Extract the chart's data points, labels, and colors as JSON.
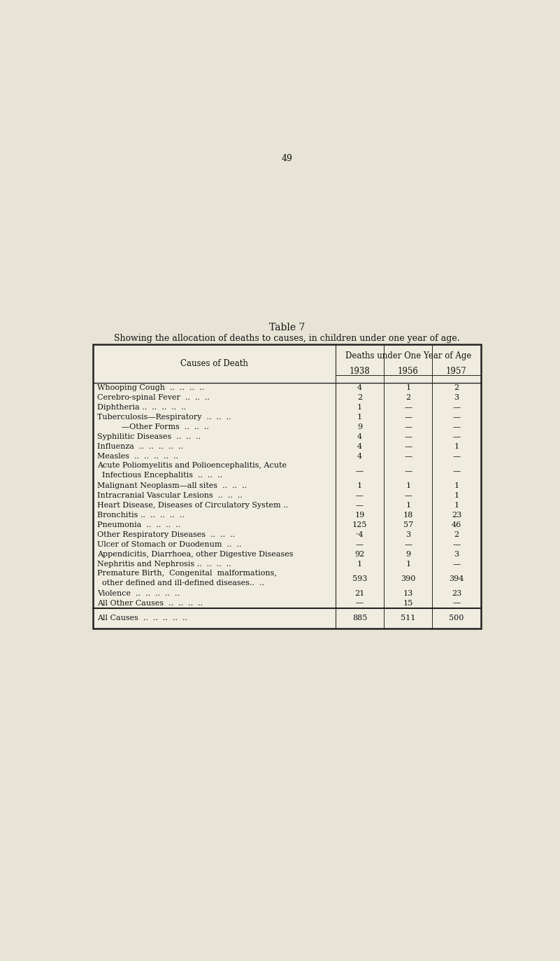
{
  "page_number": "49",
  "title": "Table 7",
  "subtitle": "Showing the allocation of deaths to causes, in children under one year of age.",
  "col_header_main": "Deaths under One Year of Age",
  "causes_of_death_label": "Causes of Death",
  "year_headers": [
    "1938",
    "1956",
    "1957"
  ],
  "rows": [
    [
      "Whooping Cough  ..  ..  ..  ..",
      "4",
      "1",
      "2"
    ],
    [
      "Cerebro-spinal Fever  ..  ..  ..",
      "2",
      "2",
      "3"
    ],
    [
      "Diphtheria ..  ..  ..  ..  ..",
      "1",
      "—",
      "—"
    ],
    [
      "Tuberculosis—Respiratory  ..  ..  ..",
      "1",
      "—",
      "—"
    ],
    [
      "          —Other Forms  ..  ..  ..",
      "9",
      "—",
      "—"
    ],
    [
      "Syphilitic Diseases  ..  ..  ..",
      "4",
      "—",
      "—"
    ],
    [
      "Influenza  ..  ..  ..  ..  ..",
      "4",
      "—",
      "1"
    ],
    [
      "Measles  ..  ..  ..  ..  ..",
      "4",
      "—",
      "—"
    ],
    [
      "Acute Poliomyelitis and Polioencephalitis, Acute\n  Infectious Encephalitis  ..  ..  ..",
      "—",
      "—",
      "—"
    ],
    [
      "Malignant Neoplasm—all sites  ..  ..  ..",
      "1",
      "1",
      "1"
    ],
    [
      "Intracranial Vascular Lesions  ..  ..  ..",
      "—",
      "—",
      "1"
    ],
    [
      "Heart Disease, Diseases of Circulatory System ..",
      "—",
      "1",
      "1"
    ],
    [
      "Bronchitis ..  ..  ..  ..  ..",
      "19",
      "18",
      "23"
    ],
    [
      "Pneumonia  ..  ..  ..  ..",
      "125",
      "57",
      "46"
    ],
    [
      "Other Respiratory Diseases  ..  ..  ..",
      "·4",
      "3",
      "2"
    ],
    [
      "Ulcer of Stomach or Duodenum  ..  ..",
      "—",
      "—",
      "—"
    ],
    [
      "Appendicitis, Diarrhoea, other Digestive Diseases",
      "92",
      "9",
      "3"
    ],
    [
      "Nephritis and Nephrosis ..  ..  ..  ..",
      "1",
      "1",
      "—"
    ],
    [
      "Premature Birth,  Congenital  malformations,\n  other defined and ill-defined diseases..  ..",
      "593",
      "390",
      "394"
    ],
    [
      "Violence  ..  ..  ..  ..  ..",
      "21",
      "13",
      "23"
    ],
    [
      "All Other Causes  ..  ..  ..  ..",
      "—",
      "15",
      "—"
    ]
  ],
  "total_row": [
    "All Causes  ..  ..  ..  ..  ..",
    "885",
    "511",
    "500"
  ],
  "bg_color": "#e8e4d5",
  "table_bg": "#f0ede0",
  "text_color": "#111111",
  "border_color": "#222222",
  "page_num_fontsize": 9,
  "title_fontsize": 10,
  "subtitle_fontsize": 9,
  "header_fontsize": 8.5,
  "table_fontsize": 8
}
